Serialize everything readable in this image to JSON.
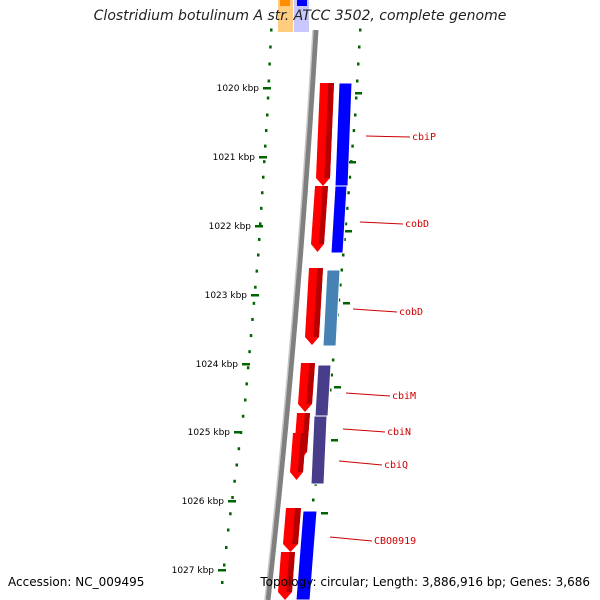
{
  "title": "Clostridium botulinum A str. ATCC 3502, complete genome",
  "accession_text": "Accession: NC_009495",
  "summary_text": "Topology: circular; Length: 3,886,916 bp; Genes: 3,686",
  "ticks": [
    "1020 kbp",
    "1021 kbp",
    "1022 kbp",
    "1023 kbp",
    "1024 kbp",
    "1025 kbp",
    "1026 kbp",
    "1027 kbp"
  ],
  "gene_labels": [
    "cbiP",
    "cobD",
    "cobD",
    "cbiM",
    "cbiN",
    "cbiQ",
    "CBO0919"
  ],
  "colors": {
    "cds": "#ff0000",
    "blast_blue": "#0000ff",
    "blast_steel": "#4682b4",
    "blast_purple": "#483d8b",
    "top_orange": "#ff8c00",
    "tick": "#006400",
    "backbone": "#808080",
    "label": "#cc0000"
  }
}
